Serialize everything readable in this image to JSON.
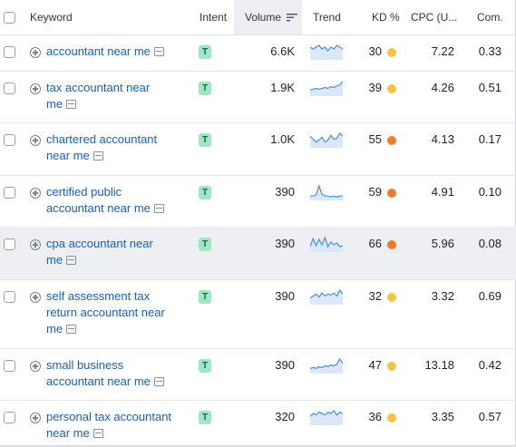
{
  "header": {
    "keyword": "Keyword",
    "intent": "Intent",
    "volume": "Volume",
    "trend": "Trend",
    "kd": "KD %",
    "cpc": "CPC (U...",
    "com": "Com."
  },
  "colors": {
    "link": "#1a5fb4",
    "kd_yellow": "#f5c342",
    "kd_orange": "#ef7c2c",
    "intent_bg": "#9fe7c4",
    "trend_line": "#4b8fd6"
  },
  "rows": [
    {
      "kw1": "accountant near me",
      "kw2": "",
      "intent": "T",
      "volume": "6.6K",
      "kd": "30",
      "kd_color": "yellow",
      "cpc": "7.22",
      "com": "0.33",
      "trend": [
        6,
        5,
        6,
        7,
        5,
        6,
        4,
        6,
        5,
        7,
        6,
        5
      ]
    },
    {
      "kw1": "tax accountant near",
      "kw2": "me",
      "intent": "T",
      "volume": "1.9K",
      "kd": "39",
      "kd_color": "yellow",
      "cpc": "4.26",
      "com": "0.51",
      "trend": [
        5,
        6,
        7,
        6,
        7,
        8,
        7,
        9,
        8,
        10,
        11,
        15
      ]
    },
    {
      "kw1": "chartered accountant",
      "kw2": "near me",
      "intent": "T",
      "volume": "1.0K",
      "kd": "55",
      "kd_color": "orange",
      "cpc": "4.13",
      "com": "0.17",
      "trend": [
        10,
        7,
        4,
        6,
        9,
        4,
        6,
        11,
        7,
        8,
        13,
        10
      ]
    },
    {
      "kw1": "certified public",
      "kw2": "accountant near me",
      "intent": "T",
      "volume": "390",
      "kd": "59",
      "kd_color": "orange",
      "cpc": "4.91",
      "com": "0.10",
      "trend": [
        3,
        3,
        4,
        15,
        5,
        3,
        3,
        2,
        3,
        2,
        3,
        3
      ]
    },
    {
      "kw1": "cpa accountant near",
      "kw2": "me",
      "intent": "T",
      "volume": "390",
      "kd": "66",
      "kd_color": "orange",
      "cpc": "5.96",
      "com": "0.08",
      "trend": [
        4,
        13,
        5,
        12,
        6,
        14,
        4,
        9,
        6,
        8,
        4,
        5
      ]
    },
    {
      "kw1": "self assessment tax",
      "kw2": "return accountant near",
      "kw3": "me",
      "intent": "T",
      "volume": "390",
      "kd": "32",
      "kd_color": "yellow",
      "cpc": "3.32",
      "com": "0.69",
      "trend": [
        5,
        7,
        9,
        6,
        10,
        7,
        9,
        8,
        10,
        7,
        13,
        9
      ]
    },
    {
      "kw1": "small business",
      "kw2": "accountant near me",
      "intent": "T",
      "volume": "390",
      "kd": "47",
      "kd_color": "yellow",
      "cpc": "13.18",
      "com": "0.42",
      "trend": [
        4,
        5,
        4,
        6,
        5,
        7,
        6,
        8,
        7,
        9,
        15,
        10
      ]
    },
    {
      "kw1": "personal tax accountant",
      "kw2": "near me",
      "intent": "T",
      "volume": "320",
      "kd": "36",
      "kd_color": "yellow",
      "cpc": "3.35",
      "com": "0.57",
      "trend": [
        5,
        7,
        6,
        8,
        7,
        6,
        8,
        7,
        9,
        6,
        8,
        7
      ]
    }
  ]
}
